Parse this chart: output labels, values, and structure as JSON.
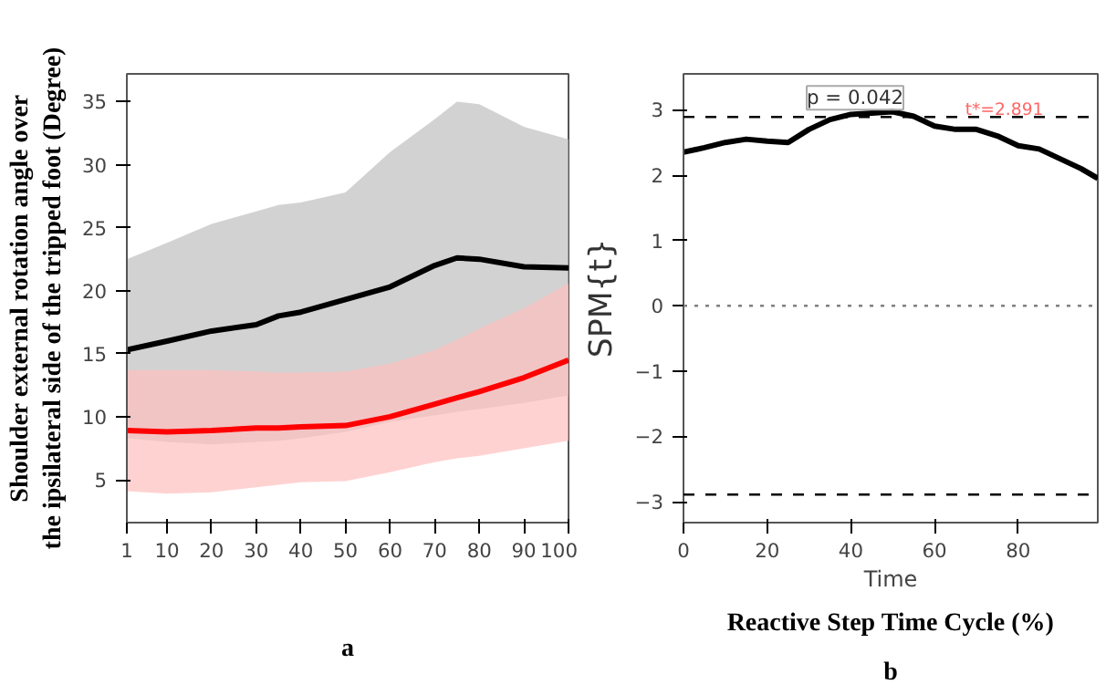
{
  "chart_data": [
    {
      "type": "line",
      "ylabel": "Shoulder external rotation angle over the ipsilateral side of the tripped foot (Degree)",
      "x": [
        1,
        10,
        20,
        30,
        35,
        40,
        50,
        60,
        70,
        75,
        80,
        90,
        100
      ],
      "series": [
        {
          "color": "#000000",
          "values": [
            15.3,
            16.0,
            16.8,
            17.3,
            18.0,
            18.3,
            19.3,
            20.3,
            22.0,
            22.6,
            22.5,
            21.9,
            21.8
          ],
          "lower": [
            8.3,
            8.0,
            7.8,
            8.0,
            8.1,
            8.3,
            8.8,
            9.6,
            10.1,
            10.4,
            10.6,
            11.1,
            11.7
          ],
          "upper": [
            22.5,
            23.8,
            25.3,
            26.3,
            26.8,
            27.0,
            27.8,
            31.0,
            33.6,
            35.0,
            34.8,
            33.0,
            32.0
          ]
        },
        {
          "color": "#ff0000",
          "values": [
            8.9,
            8.8,
            8.9,
            9.1,
            9.1,
            9.2,
            9.3,
            10.0,
            11.0,
            11.5,
            12.0,
            13.1,
            14.5
          ],
          "lower": [
            4.1,
            3.9,
            4.0,
            4.4,
            4.6,
            4.8,
            4.9,
            5.6,
            6.4,
            6.7,
            6.9,
            7.5,
            8.1
          ],
          "upper": [
            13.7,
            13.7,
            13.7,
            13.6,
            13.5,
            13.5,
            13.6,
            14.2,
            15.3,
            16.1,
            17.0,
            18.6,
            20.6
          ]
        }
      ],
      "xlim": [
        1,
        100
      ],
      "xticks": [
        1,
        10,
        20,
        30,
        40,
        50,
        60,
        70,
        80,
        90,
        100
      ],
      "ylim": [
        1.6,
        37.2
      ],
      "yticks": [
        5,
        10,
        15,
        20,
        25,
        30,
        35
      ],
      "annotations": [
        "a"
      ]
    },
    {
      "type": "line",
      "ylabel": "SPM{t}",
      "xlabel": "Time",
      "x": [
        0,
        5,
        10,
        15,
        20,
        25,
        30,
        35,
        40,
        45,
        50,
        55,
        60,
        65,
        70,
        75,
        80,
        85,
        90,
        95,
        99
      ],
      "series": [
        {
          "color": "#000000",
          "values": [
            2.35,
            2.42,
            2.5,
            2.55,
            2.52,
            2.5,
            2.7,
            2.85,
            2.93,
            2.95,
            2.97,
            2.9,
            2.75,
            2.7,
            2.7,
            2.6,
            2.45,
            2.4,
            2.25,
            2.1,
            1.95
          ]
        }
      ],
      "xlim": [
        0,
        99
      ],
      "xticks": [
        0,
        20,
        40,
        60,
        80
      ],
      "ylim": [
        -3.32,
        3.55
      ],
      "yticks": [
        {
          "value": -3,
          "label": "−3"
        },
        {
          "value": -2,
          "label": "−2"
        },
        {
          "value": -1,
          "label": "−1"
        },
        0,
        1,
        2,
        3
      ],
      "ref_lines": [
        {
          "axis": "y",
          "value": 2.891,
          "label": "t*=2.891",
          "color": "#000000",
          "line_style": "dashed"
        },
        {
          "axis": "y",
          "value": 0,
          "label": null,
          "color": "#808080",
          "line_style": "dotted"
        },
        {
          "axis": "y",
          "value": -2.891,
          "label": null,
          "color": "#000000",
          "line_style": "dashed"
        }
      ],
      "annotations": [
        {
          "text": "p = 0.042",
          "x": 41,
          "y": 2.891
        },
        "Reactive Step Time Cycle (%)",
        "b"
      ]
    }
  ]
}
